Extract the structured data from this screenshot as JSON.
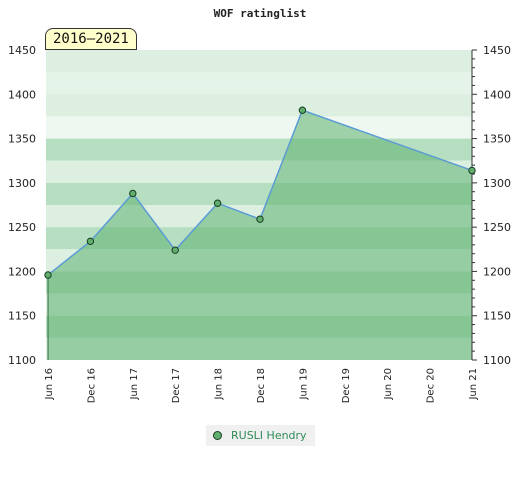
{
  "chart_data": {
    "type": "area",
    "title": "WOF ratinglist",
    "period_label": "2016–2021",
    "x": [
      "Jun 16",
      "Dec 16",
      "Jun 17",
      "Dec 17",
      "Jun 18",
      "Dec 18",
      "Jun 19",
      "Dec 19",
      "Jun 20",
      "Dec 20",
      "Jun 21"
    ],
    "x_ticks": [
      "Jun 16",
      "Dec 16",
      "Jun 17",
      "Dec 17",
      "Jun 18",
      "Dec 18",
      "Jun 19",
      "Dec 19",
      "Jun 20",
      "Dec 20",
      "Jun 21"
    ],
    "y_ticks": [
      1100,
      1150,
      1200,
      1250,
      1300,
      1350,
      1400,
      1450
    ],
    "ylim": [
      1100,
      1450
    ],
    "series": [
      {
        "name": "RUSLI Hendry",
        "points": [
          {
            "x": "Jun 16",
            "y": 1196
          },
          {
            "x": "Dec 16",
            "y": 1234
          },
          {
            "x": "Jun 17",
            "y": 1288
          },
          {
            "x": "Dec 17",
            "y": 1224
          },
          {
            "x": "Jun 18",
            "y": 1277
          },
          {
            "x": "Dec 18",
            "y": 1259
          },
          {
            "x": "Jun 19",
            "y": 1382
          },
          {
            "x": "Jun 21",
            "y": 1314
          }
        ]
      }
    ],
    "grid": true,
    "legend_position": "bottom-center",
    "colors": {
      "line": "#5b9bd5",
      "area": "#5fb06f",
      "marker": "#5fae6e",
      "marker_stroke": "#1a3d22",
      "band_light": "#eef8f0",
      "band_mid": "#dcefe0",
      "band_dark": "#b5dfc0"
    }
  }
}
